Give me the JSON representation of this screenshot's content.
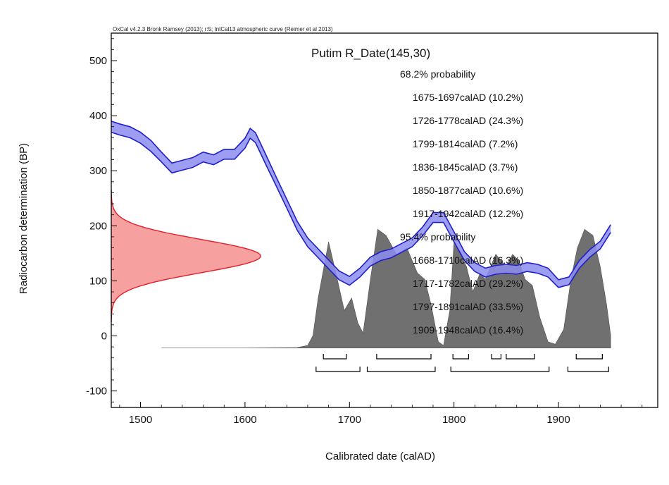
{
  "header": {
    "software_note": "OxCal v4.2.3 Bronk Ramsey (2013); r:5; IntCal13 atmospheric curve (Reimer et al 2013)"
  },
  "chart_data": {
    "type": "area",
    "title": "Putim R_Date(145,30)",
    "xlabel": "Calibrated date (calAD)",
    "ylabel": "Radiocarbon determination (BP)",
    "xlim": [
      1472,
      1995
    ],
    "ylim": [
      -130,
      550
    ],
    "xticks": [
      1500,
      1600,
      1700,
      1800,
      1900
    ],
    "yticks": [
      -100,
      0,
      100,
      200,
      300,
      400,
      500
    ],
    "grid": false,
    "radiocarbon_date": {
      "mean_bp": 145,
      "sd_bp": 30,
      "color": "#e0202a",
      "fill": "#f7a0a0"
    },
    "calibration_curve": {
      "name": "IntCal13",
      "color": "#2020c8",
      "fill": "#8c8cf0",
      "x": [
        1472,
        1480,
        1490,
        1500,
        1510,
        1520,
        1530,
        1540,
        1550,
        1560,
        1570,
        1580,
        1590,
        1600,
        1605,
        1610,
        1620,
        1630,
        1640,
        1650,
        1660,
        1670,
        1680,
        1690,
        1700,
        1710,
        1720,
        1730,
        1740,
        1750,
        1760,
        1770,
        1780,
        1790,
        1800,
        1810,
        1820,
        1830,
        1840,
        1850,
        1860,
        1870,
        1880,
        1890,
        1900,
        1910,
        1920,
        1930,
        1940,
        1950
      ],
      "mean": [
        380,
        375,
        370,
        360,
        345,
        325,
        305,
        310,
        315,
        325,
        320,
        330,
        330,
        350,
        368,
        360,
        320,
        280,
        240,
        200,
        170,
        150,
        130,
        110,
        100,
        115,
        135,
        145,
        150,
        160,
        170,
        190,
        215,
        215,
        180,
        145,
        125,
        115,
        120,
        122,
        120,
        125,
        122,
        115,
        95,
        100,
        130,
        150,
        165,
        195
      ],
      "sigma": [
        10,
        10,
        10,
        10,
        10,
        9,
        9,
        9,
        9,
        9,
        9,
        9,
        9,
        9,
        9,
        9,
        9,
        8,
        8,
        8,
        8,
        8,
        8,
        8,
        8,
        8,
        8,
        8,
        8,
        8,
        8,
        8,
        9,
        9,
        9,
        8,
        8,
        8,
        8,
        8,
        8,
        8,
        8,
        8,
        7,
        7,
        7,
        7,
        7,
        7
      ]
    },
    "calibrated_distribution": {
      "color": "#707070",
      "x": [
        1520,
        1600,
        1650,
        1660,
        1665,
        1670,
        1680,
        1687,
        1695,
        1702,
        1708,
        1713,
        1720,
        1727,
        1735,
        1745,
        1755,
        1765,
        1772,
        1778,
        1785,
        1790,
        1796,
        1800,
        1806,
        1812,
        1818,
        1825,
        1830,
        1835,
        1840,
        1845,
        1850,
        1856,
        1862,
        1868,
        1875,
        1882,
        1890,
        1897,
        1905,
        1912,
        1918,
        1925,
        1933,
        1940,
        1946,
        1950
      ],
      "rel": [
        0,
        0,
        0.003,
        0.02,
        0.1,
        0.4,
        0.85,
        0.6,
        0.3,
        0.4,
        0.2,
        0.12,
        0.55,
        0.95,
        0.9,
        0.75,
        0.8,
        0.6,
        0.55,
        0.35,
        0.05,
        0.02,
        0.3,
        0.85,
        0.75,
        0.65,
        0.45,
        0.6,
        0.55,
        0.65,
        0.75,
        0.7,
        0.65,
        0.75,
        0.7,
        0.55,
        0.5,
        0.25,
        0.05,
        0.03,
        0.15,
        0.55,
        0.8,
        0.95,
        0.9,
        0.65,
        0.35,
        0.1
      ]
    },
    "probability_ranges": {
      "sigma1_label": "68.2% probability",
      "sigma1": [
        {
          "text": "1675-1697calAD (10.2%)",
          "from": 1675,
          "to": 1697
        },
        {
          "text": "1726-1778calAD (24.3%)",
          "from": 1726,
          "to": 1778
        },
        {
          "text": "1799-1814calAD (7.2%)",
          "from": 1799,
          "to": 1814
        },
        {
          "text": "1836-1845calAD (3.7%)",
          "from": 1836,
          "to": 1845
        },
        {
          "text": "1850-1877calAD (10.6%)",
          "from": 1850,
          "to": 1877
        },
        {
          "text": "1917-1942calAD (12.2%)",
          "from": 1917,
          "to": 1942
        }
      ],
      "sigma2_label": "95.4% probability",
      "sigma2": [
        {
          "text": "1668-1710calAD (16.3%)",
          "from": 1668,
          "to": 1710
        },
        {
          "text": "1717-1782calAD (29.2%)",
          "from": 1717,
          "to": 1782
        },
        {
          "text": "1797-1891calAD (33.5%)",
          "from": 1797,
          "to": 1891
        },
        {
          "text": "1909-1948calAD (16.4%)",
          "from": 1909,
          "to": 1948
        }
      ]
    }
  }
}
